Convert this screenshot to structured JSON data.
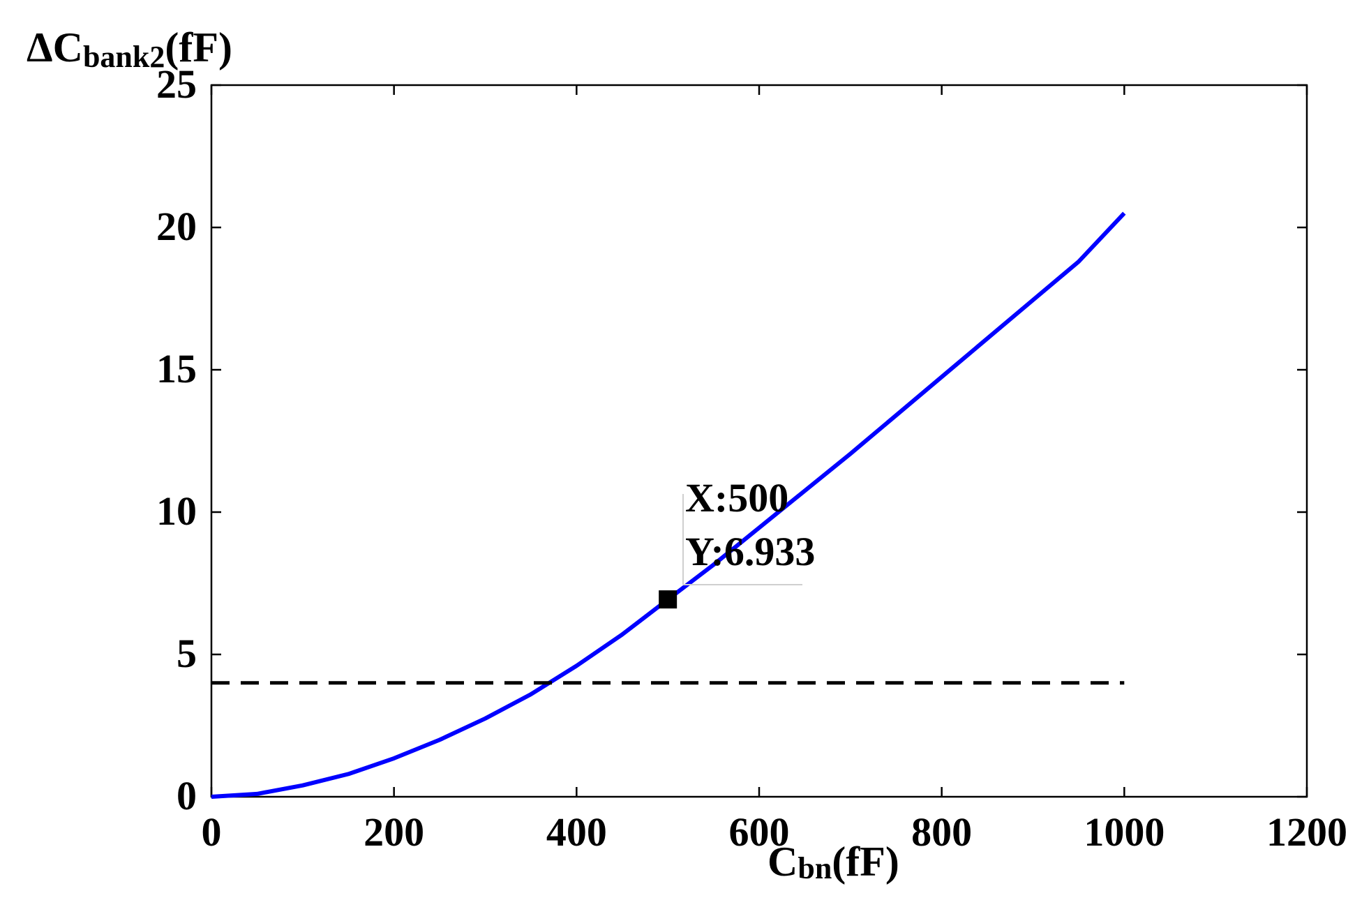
{
  "chart_data": {
    "type": "line",
    "xlabel": {
      "main": "C",
      "sub": "bn",
      "unit": "(fF)"
    },
    "ylabel": {
      "prefix": "ΔC",
      "sub": "bank2",
      "unit": "(fF)"
    },
    "xlim": [
      0,
      1200
    ],
    "ylim": [
      0,
      25
    ],
    "xticks": [
      0,
      200,
      400,
      600,
      800,
      1000,
      1200
    ],
    "yticks": [
      0,
      5,
      10,
      15,
      20,
      25
    ],
    "xtick_labels": [
      "0",
      "200",
      "400",
      "600",
      "800",
      "1000",
      "1200"
    ],
    "ytick_labels": [
      "0",
      "5",
      "10",
      "15",
      "20",
      "25"
    ],
    "grid": false,
    "series": [
      {
        "color": "#0000ff",
        "style": "solid",
        "x": [
          0,
          50,
          100,
          150,
          200,
          250,
          300,
          350,
          400,
          450,
          500,
          550,
          600,
          650,
          700,
          750,
          800,
          850,
          900,
          950,
          1000
        ],
        "y": [
          0,
          0.1,
          0.4,
          0.8,
          1.35,
          2.0,
          2.75,
          3.6,
          4.6,
          5.7,
          6.93,
          8.15,
          9.45,
          10.75,
          12.05,
          13.4,
          14.75,
          16.1,
          17.45,
          18.8,
          20.5
        ]
      },
      {
        "color": "#000000",
        "style": "dashed",
        "x": [
          0,
          1000
        ],
        "y": [
          4,
          4
        ]
      }
    ],
    "datatip": {
      "x": 500,
      "y": 6.933,
      "label_x": "X:500",
      "label_y": "Y:6.933"
    }
  }
}
